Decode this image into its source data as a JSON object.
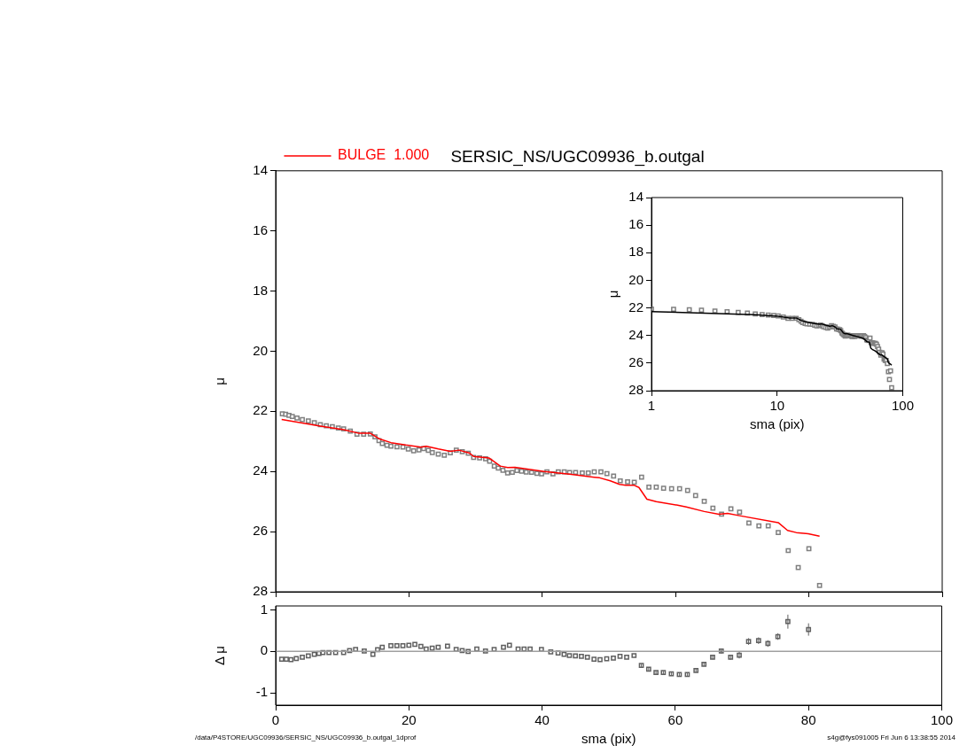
{
  "chart_data": [
    {
      "type": "scatter",
      "title": "SERSIC_NS/UGC09936_b.outgal",
      "ylabel": "μ",
      "xlim": [
        0,
        100
      ],
      "xticks": [
        0,
        20,
        40,
        60,
        80,
        100
      ],
      "ylim": [
        28,
        14
      ],
      "yticks": [
        14,
        16,
        18,
        20,
        22,
        24,
        26,
        28
      ],
      "tick_labels": "y",
      "legend": "top left",
      "marker": "square",
      "series": [
        {
          "color": "#808080",
          "x": [
            1.0,
            1.5,
            2.0,
            2.5,
            3.2,
            4.0,
            4.9,
            5.8,
            6.7,
            7.6,
            8.5,
            9.4,
            10.2,
            11.2,
            12.2,
            13.2,
            14.2,
            14.9,
            15.5,
            16.0,
            16.7,
            17.3,
            18.2,
            19.1,
            19.9,
            20.7,
            21.5,
            22.2,
            22.9,
            23.5,
            24.4,
            25.3,
            26.2,
            27.1,
            28.0,
            28.9,
            29.7,
            30.6,
            31.5,
            32.1,
            32.8,
            33.4,
            34.1,
            34.8,
            35.5,
            36.2,
            36.9,
            37.6,
            38.4,
            39.2,
            39.9,
            40.7,
            41.6,
            42.4,
            43.3,
            44.1,
            45.0,
            46.0,
            46.9,
            47.8,
            48.8,
            49.7,
            50.7,
            51.7,
            52.8,
            53.8,
            54.9,
            56.0,
            57.1,
            58.2,
            59.4,
            60.6,
            61.8,
            63.0,
            64.3,
            65.6,
            66.9,
            68.3,
            69.6,
            71.0,
            72.5,
            73.9,
            75.4,
            76.9,
            78.4,
            80.0,
            81.6
          ],
          "values": [
            22.08,
            22.1,
            22.13,
            22.17,
            22.22,
            22.27,
            22.32,
            22.38,
            22.44,
            22.48,
            22.51,
            22.55,
            22.58,
            22.66,
            22.76,
            22.76,
            22.75,
            22.85,
            22.97,
            23.07,
            23.13,
            23.16,
            23.18,
            23.19,
            23.25,
            23.31,
            23.28,
            23.24,
            23.3,
            23.37,
            23.42,
            23.46,
            23.38,
            23.29,
            23.34,
            23.39,
            23.53,
            23.55,
            23.58,
            23.66,
            23.82,
            23.89,
            23.96,
            24.05,
            24.03,
            23.97,
            23.99,
            24.02,
            24.03,
            24.06,
            24.08,
            24.01,
            24.08,
            24.01,
            24.01,
            24.03,
            24.03,
            24.05,
            24.05,
            24.01,
            24.01,
            24.07,
            24.15,
            24.31,
            24.34,
            24.36,
            24.19,
            24.52,
            24.52,
            24.56,
            24.57,
            24.57,
            24.63,
            24.8,
            24.99,
            25.22,
            25.42,
            25.24,
            25.35,
            25.71,
            25.81,
            25.81,
            26.03,
            26.63,
            27.19,
            26.57,
            27.79
          ]
        },
        {
          "type": "line",
          "name": "BULGE  1.000",
          "color": "#ff0000",
          "marker": "none",
          "x": [
            0.9,
            6.7,
            10.2,
            12.5,
            14.2,
            15.6,
            17.3,
            19.5,
            21.8,
            22.6,
            24.4,
            26.2,
            27.5,
            29.1,
            29.7,
            32.0,
            33.7,
            34.8,
            35.9,
            40.3,
            44.1,
            47.8,
            48.6,
            50.2,
            51.6,
            52.5,
            53.8,
            54.5,
            55.7,
            57.1,
            60.3,
            61.6,
            64.3,
            66.5,
            67.8,
            69.6,
            75.4,
            76.8,
            78.1,
            79.9,
            81.6
          ],
          "values": [
            22.27,
            22.49,
            22.61,
            22.73,
            22.73,
            22.92,
            23.04,
            23.12,
            23.19,
            23.16,
            23.25,
            23.33,
            23.29,
            23.39,
            23.5,
            23.55,
            23.82,
            23.87,
            23.86,
            24.0,
            24.09,
            24.19,
            24.21,
            24.31,
            24.43,
            24.46,
            24.46,
            24.53,
            24.92,
            25.0,
            25.12,
            25.18,
            25.33,
            25.42,
            25.39,
            25.47,
            25.7,
            25.96,
            26.03,
            26.07,
            26.15
          ]
        }
      ]
    },
    {
      "type": "scatter",
      "xlabel": "sma (pix)",
      "ylabel": "μ",
      "log": "x",
      "xlim": [
        1,
        100
      ],
      "xticks": [
        1,
        10,
        100
      ],
      "ylim": [
        28,
        14
      ],
      "yticks": [
        14,
        16,
        18,
        20,
        22,
        24,
        26,
        28
      ],
      "marker": "square",
      "series": [
        {
          "color": "#808080",
          "x": [
            1.0,
            1.5,
            2.0,
            2.5,
            3.2,
            4.0,
            4.9,
            5.8,
            6.7,
            7.6,
            8.5,
            9.4,
            10.2,
            11.2,
            12.2,
            13.2,
            14.2,
            14.9,
            15.5,
            16.0,
            16.7,
            17.3,
            18.2,
            19.1,
            19.9,
            20.7,
            21.5,
            22.2,
            22.9,
            23.5,
            24.4,
            25.3,
            26.2,
            27.1,
            28.0,
            28.9,
            29.7,
            30.6,
            31.5,
            32.1,
            32.8,
            33.4,
            34.1,
            34.8,
            35.5,
            36.2,
            36.9,
            37.6,
            38.4,
            39.2,
            39.9,
            40.7,
            41.6,
            42.4,
            43.3,
            44.1,
            45.0,
            46.0,
            46.9,
            47.8,
            48.8,
            49.7,
            50.7,
            51.7,
            52.8,
            53.8,
            54.9,
            56.0,
            57.1,
            58.2,
            59.4,
            60.6,
            61.8,
            63.0,
            64.3,
            65.6,
            66.9,
            68.3,
            69.6,
            71.0,
            72.5,
            73.9,
            75.4,
            76.9,
            78.4,
            80.0,
            81.6
          ],
          "values": [
            22.08,
            22.1,
            22.13,
            22.17,
            22.22,
            22.27,
            22.32,
            22.38,
            22.44,
            22.48,
            22.51,
            22.55,
            22.58,
            22.66,
            22.76,
            22.76,
            22.75,
            22.85,
            22.97,
            23.07,
            23.13,
            23.16,
            23.18,
            23.19,
            23.25,
            23.31,
            23.28,
            23.24,
            23.3,
            23.37,
            23.42,
            23.46,
            23.38,
            23.29,
            23.34,
            23.39,
            23.53,
            23.55,
            23.58,
            23.66,
            23.82,
            23.89,
            23.96,
            24.05,
            24.03,
            23.97,
            23.99,
            24.02,
            24.03,
            24.06,
            24.08,
            24.01,
            24.08,
            24.01,
            24.01,
            24.03,
            24.03,
            24.05,
            24.05,
            24.01,
            24.01,
            24.07,
            24.15,
            24.31,
            24.34,
            24.36,
            24.19,
            24.52,
            24.52,
            24.56,
            24.57,
            24.57,
            24.63,
            24.8,
            24.99,
            25.22,
            25.42,
            25.24,
            25.35,
            25.71,
            25.81,
            25.81,
            26.03,
            26.63,
            27.19,
            26.57,
            27.79
          ]
        },
        {
          "type": "line",
          "color": "#000000",
          "marker": "none",
          "x": [
            1.0,
            6.7,
            10.2,
            12.5,
            14.2,
            15.6,
            17.3,
            19.5,
            21.8,
            22.6,
            24.4,
            26.2,
            27.5,
            29.1,
            29.7,
            32.0,
            33.7,
            34.8,
            35.9,
            40.3,
            44.1,
            47.8,
            48.6,
            50.2,
            51.6,
            52.5,
            53.8,
            54.5,
            55.7,
            57.1,
            60.3,
            61.6,
            64.3,
            66.5,
            67.8,
            69.6,
            75.4,
            76.8,
            78.1,
            79.9,
            81.6
          ],
          "values": [
            22.27,
            22.49,
            22.61,
            22.73,
            22.73,
            22.92,
            23.04,
            23.12,
            23.19,
            23.16,
            23.25,
            23.33,
            23.29,
            23.39,
            23.5,
            23.55,
            23.82,
            23.87,
            23.86,
            24.0,
            24.09,
            24.19,
            24.21,
            24.31,
            24.43,
            24.46,
            24.46,
            24.53,
            24.92,
            25.0,
            25.12,
            25.18,
            25.33,
            25.42,
            25.39,
            25.47,
            25.7,
            25.96,
            26.03,
            26.07,
            26.15
          ]
        }
      ]
    },
    {
      "type": "scatter",
      "xlabel": "sma (pix)",
      "ylabel": "Δ μ",
      "xlim": [
        0,
        100
      ],
      "xticks": [
        0,
        20,
        40,
        60,
        80,
        100
      ],
      "ylim": [
        -1.3,
        1.1
      ],
      "yticks": [
        -1,
        0,
        1
      ],
      "marker": "square",
      "ref_lines": [
        {
          "axis": "y",
          "value": 0,
          "color": "#a0a0a0"
        }
      ],
      "annotations": [
        "/data/P4STORE/UGC09936/SERSIC_NS/UGC09936_b.outgal_1dprof",
        "s4g@fys091005  Fri Jun  6 13:38:55 2014"
      ],
      "series": [
        {
          "color": "#606060",
          "x": [
            0.9,
            1.6,
            2.3,
            3.1,
            4.0,
            4.9,
            5.8,
            6.5,
            7.1,
            8.0,
            9.0,
            10.2,
            11.1,
            12.0,
            13.3,
            14.6,
            15.3,
            16.0,
            17.3,
            18.2,
            19.1,
            20.0,
            20.9,
            21.8,
            22.6,
            23.5,
            24.4,
            25.8,
            27.1,
            28.0,
            28.9,
            30.2,
            31.5,
            32.8,
            34.2,
            35.1,
            36.4,
            37.3,
            38.2,
            39.9,
            41.3,
            42.4,
            43.3,
            44.1,
            45.0,
            45.9,
            46.8,
            47.8,
            48.7,
            49.7,
            50.7,
            51.7,
            52.7,
            53.8,
            54.9,
            56.0,
            57.1,
            58.2,
            59.4,
            60.6,
            61.8,
            63.1,
            64.3,
            65.6,
            66.9,
            68.3,
            69.6,
            71.0,
            72.5,
            73.9,
            75.4,
            76.9,
            80.0
          ],
          "values": [
            -0.19,
            -0.19,
            -0.2,
            -0.17,
            -0.14,
            -0.11,
            -0.07,
            -0.05,
            -0.03,
            -0.03,
            -0.03,
            -0.03,
            0.02,
            0.05,
            0.01,
            -0.07,
            0.04,
            0.1,
            0.14,
            0.14,
            0.14,
            0.15,
            0.17,
            0.12,
            0.06,
            0.08,
            0.1,
            0.13,
            0.05,
            0.02,
            0.0,
            0.06,
            0.01,
            0.05,
            0.1,
            0.15,
            0.06,
            0.06,
            0.06,
            0.05,
            -0.01,
            -0.04,
            -0.07,
            -0.1,
            -0.11,
            -0.12,
            -0.14,
            -0.19,
            -0.2,
            -0.18,
            -0.16,
            -0.12,
            -0.14,
            -0.1,
            -0.34,
            -0.43,
            -0.51,
            -0.51,
            -0.54,
            -0.56,
            -0.56,
            -0.46,
            -0.31,
            -0.14,
            0.01,
            -0.14,
            -0.09,
            0.24,
            0.26,
            0.19,
            0.36,
            0.72,
            0.53
          ],
          "errors": [
            null,
            null,
            null,
            null,
            null,
            null,
            null,
            null,
            null,
            null,
            null,
            null,
            null,
            null,
            null,
            null,
            null,
            null,
            null,
            null,
            null,
            null,
            null,
            null,
            null,
            null,
            null,
            null,
            null,
            null,
            null,
            null,
            null,
            null,
            null,
            null,
            null,
            null,
            null,
            null,
            null,
            null,
            null,
            null,
            null,
            null,
            null,
            null,
            null,
            null,
            null,
            null,
            null,
            null,
            0.04,
            0.04,
            0.04,
            0.04,
            0.04,
            0.04,
            0.04,
            0.05,
            0.05,
            0.05,
            0.06,
            0.06,
            0.08,
            0.08,
            0.08,
            0.08,
            0.08,
            0.17,
            0.15
          ]
        }
      ]
    }
  ]
}
